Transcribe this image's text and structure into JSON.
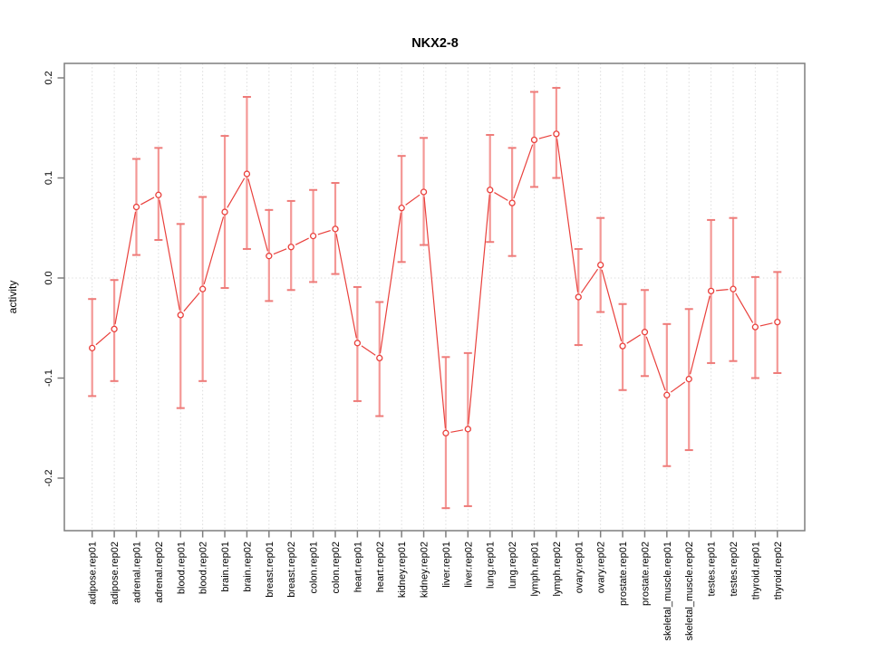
{
  "figure": {
    "background": "#ffffff",
    "colors": {
      "series": "#e9403c",
      "error_bar": "#f49896",
      "error_cap": "#ee7b79",
      "grid": "#dcdcdc",
      "zero_line": "#dedede",
      "axis": "#7e7e7e",
      "text": "#000000"
    }
  },
  "chart_data": {
    "type": "line",
    "subtype": "points-with-error-bars",
    "title": "NKX2-8",
    "xlabel": "",
    "ylabel": "activity",
    "ylim": [
      -0.2525,
      0.2145
    ],
    "yticks": [
      -0.2,
      -0.1,
      0.0,
      0.1,
      0.2
    ],
    "ytick_labels": [
      "-0.2",
      "-0.1",
      "0.0",
      "0.1",
      "0.2"
    ],
    "grid": "vertical dotted line at every category; dotted horizontal line at y=0",
    "legend": "none",
    "marker": "open-circle",
    "categories": [
      "adipose.rep01",
      "adipose.rep02",
      "adrenal.rep01",
      "adrenal.rep02",
      "blood.rep01",
      "blood.rep02",
      "brain.rep01",
      "brain.rep02",
      "breast.rep01",
      "breast.rep02",
      "colon.rep01",
      "colon.rep02",
      "heart.rep01",
      "heart.rep02",
      "kidney.rep01",
      "kidney.rep02",
      "liver.rep01",
      "liver.rep02",
      "lung.rep01",
      "lung.rep02",
      "lymph.rep01",
      "lymph.rep02",
      "ovary.rep01",
      "ovary.rep02",
      "prostate.rep01",
      "prostate.rep02",
      "skeletal_muscle.rep01",
      "skeletal_muscle.rep02",
      "testes.rep01",
      "testes.rep02",
      "thyroid.rep01",
      "thyroid.rep02"
    ],
    "series": [
      {
        "name": "activity",
        "values": [
          -0.07,
          -0.051,
          0.071,
          0.083,
          -0.037,
          -0.011,
          0.066,
          0.104,
          0.022,
          0.031,
          0.042,
          0.049,
          -0.065,
          -0.08,
          0.07,
          0.086,
          -0.155,
          -0.151,
          0.088,
          0.075,
          0.138,
          0.144,
          -0.019,
          0.013,
          -0.068,
          -0.054,
          -0.117,
          -0.101,
          -0.013,
          -0.011,
          -0.049,
          -0.044
        ],
        "error_low": [
          -0.118,
          -0.103,
          0.023,
          0.038,
          -0.13,
          -0.103,
          -0.01,
          0.029,
          -0.023,
          -0.012,
          -0.004,
          0.004,
          -0.123,
          -0.138,
          0.016,
          0.033,
          -0.23,
          -0.228,
          0.036,
          0.022,
          0.091,
          0.1,
          -0.067,
          -0.034,
          -0.112,
          -0.098,
          -0.188,
          -0.172,
          -0.085,
          -0.083,
          -0.1,
          -0.095
        ],
        "error_high": [
          -0.021,
          -0.002,
          0.119,
          0.13,
          0.054,
          0.081,
          0.142,
          0.181,
          0.068,
          0.077,
          0.088,
          0.095,
          -0.009,
          -0.024,
          0.122,
          0.14,
          -0.079,
          -0.075,
          0.143,
          0.13,
          0.186,
          0.19,
          0.029,
          0.06,
          -0.026,
          -0.012,
          -0.046,
          -0.031,
          0.058,
          0.06,
          0.001,
          0.006
        ]
      }
    ]
  }
}
